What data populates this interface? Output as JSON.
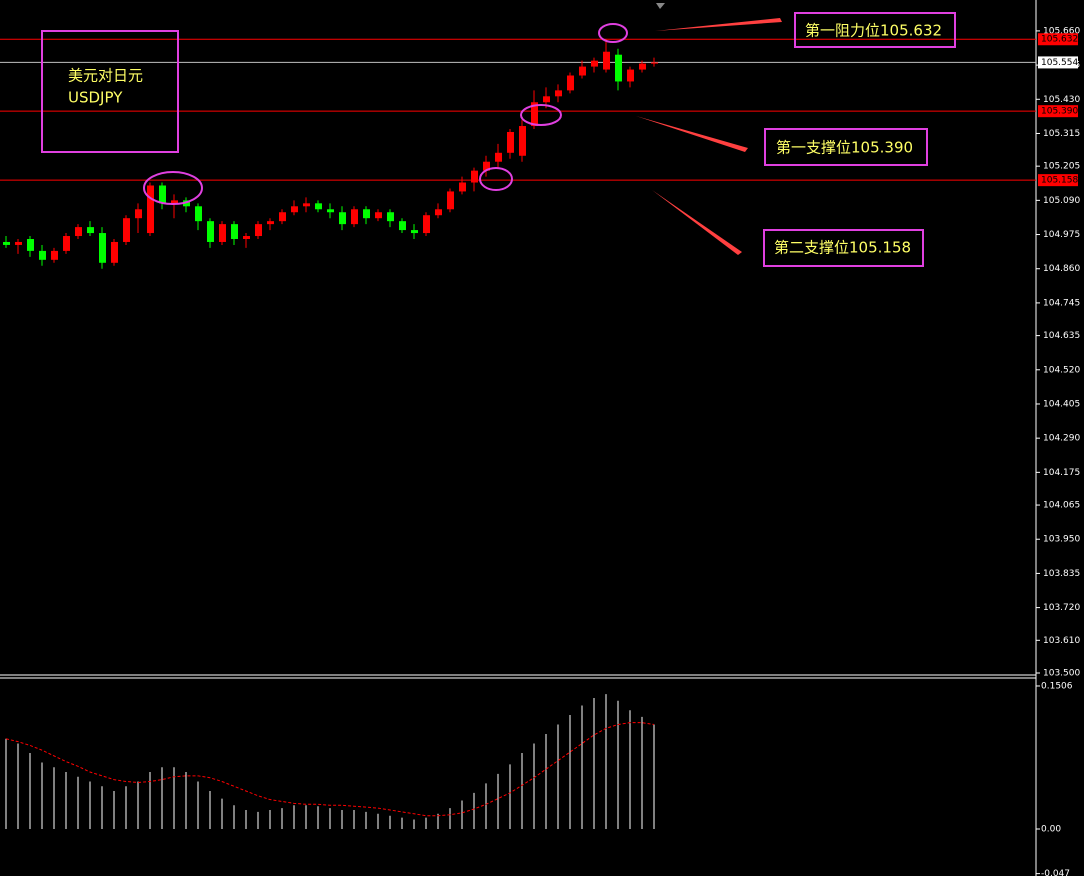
{
  "chart_data": [
    {
      "type": "candlestick",
      "open": [
        104.95,
        104.94,
        104.96,
        104.92,
        104.89,
        104.92,
        104.97,
        105.0,
        104.98,
        104.88,
        104.95,
        105.03,
        104.98,
        105.14,
        105.08,
        105.09,
        105.07,
        105.02,
        104.95,
        105.01,
        104.96,
        104.97,
        105.01,
        105.02,
        105.05,
        105.07,
        105.08,
        105.06,
        105.05,
        105.01,
        105.06,
        105.03,
        105.05,
        105.02,
        104.99,
        104.98,
        105.04,
        105.06,
        105.12,
        105.15,
        105.19,
        105.22,
        105.25,
        105.24,
        105.34,
        105.42,
        105.44,
        105.46,
        105.51,
        105.54,
        105.53,
        105.58,
        105.49,
        105.53,
        105.55
      ],
      "high": [
        104.97,
        104.96,
        104.97,
        104.94,
        104.93,
        104.98,
        105.01,
        105.02,
        105.0,
        104.96,
        105.04,
        105.08,
        105.15,
        105.15,
        105.11,
        105.1,
        105.08,
        105.03,
        105.02,
        105.02,
        104.98,
        105.02,
        105.03,
        105.06,
        105.09,
        105.1,
        105.09,
        105.08,
        105.07,
        105.07,
        105.07,
        105.06,
        105.06,
        105.03,
        105.01,
        105.05,
        105.08,
        105.13,
        105.17,
        105.2,
        105.24,
        105.28,
        105.33,
        105.36,
        105.46,
        105.47,
        105.48,
        105.52,
        105.56,
        105.57,
        105.632,
        105.6,
        105.54,
        105.56,
        105.57
      ],
      "low": [
        104.93,
        104.91,
        104.9,
        104.87,
        104.88,
        104.91,
        104.96,
        104.97,
        104.86,
        104.87,
        104.94,
        104.98,
        104.97,
        105.06,
        105.03,
        105.05,
        104.99,
        104.93,
        104.94,
        104.94,
        104.93,
        104.96,
        104.99,
        105.01,
        105.04,
        105.05,
        105.05,
        105.03,
        104.99,
        105.0,
        105.01,
        105.02,
        105.0,
        104.98,
        104.96,
        104.97,
        105.03,
        105.05,
        105.11,
        105.12,
        105.17,
        105.2,
        105.23,
        105.22,
        105.33,
        105.4,
        105.42,
        105.45,
        105.5,
        105.52,
        105.52,
        105.46,
        105.47,
        105.52,
        105.54
      ],
      "close": [
        104.94,
        104.95,
        104.92,
        104.89,
        104.92,
        104.97,
        105.0,
        104.98,
        104.88,
        104.95,
        105.03,
        105.06,
        105.14,
        105.08,
        105.09,
        105.07,
        105.02,
        104.95,
        105.01,
        104.96,
        104.97,
        105.01,
        105.02,
        105.05,
        105.07,
        105.08,
        105.06,
        105.05,
        105.01,
        105.06,
        105.03,
        105.05,
        105.02,
        104.99,
        104.98,
        105.04,
        105.06,
        105.12,
        105.15,
        105.19,
        105.22,
        105.25,
        105.32,
        105.34,
        105.42,
        105.44,
        105.46,
        105.51,
        105.54,
        105.56,
        105.59,
        105.49,
        105.53,
        105.55,
        105.554
      ],
      "up_color": "#ff0000",
      "down_color": "#00ff00",
      "ylim": [
        103.5,
        105.764
      ],
      "yticks": [
        {
          "value": 105.66,
          "label": "105.660"
        },
        {
          "value": 105.545,
          "label": "105.545"
        },
        {
          "value": 105.43,
          "label": "105.430"
        },
        {
          "value": 105.315,
          "label": "105.315"
        },
        {
          "value": 105.205,
          "label": "105.205"
        },
        {
          "value": 105.09,
          "label": "105.090"
        },
        {
          "value": 104.975,
          "label": "104.975"
        },
        {
          "value": 104.86,
          "label": "104.860"
        },
        {
          "value": 104.745,
          "label": "104.745"
        },
        {
          "value": 104.635,
          "label": "104.635"
        },
        {
          "value": 104.52,
          "label": "104.520"
        },
        {
          "value": 104.405,
          "label": "104.405"
        },
        {
          "value": 104.29,
          "label": "104.290"
        },
        {
          "value": 104.175,
          "label": "104.175"
        },
        {
          "value": 104.065,
          "label": "104.065"
        },
        {
          "value": 103.95,
          "label": "103.950"
        },
        {
          "value": 103.835,
          "label": "103.835"
        },
        {
          "value": 103.72,
          "label": "103.720"
        },
        {
          "value": 103.61,
          "label": "103.610"
        },
        {
          "value": 103.5,
          "label": "103.500"
        }
      ],
      "hlines": [
        {
          "value": 105.632,
          "label": "105.632",
          "color": "#ff0000"
        },
        {
          "value": 105.554,
          "label": "105.554",
          "color": "#c0c0c0"
        },
        {
          "value": 105.39,
          "label": "105.390",
          "color": "#ff0000"
        },
        {
          "value": 105.158,
          "label": "105.158",
          "color": "#ff0000"
        }
      ],
      "annotations": [
        "第一阻力位105.632",
        "第一支撑位105.390",
        "第二支撑位105.158"
      ],
      "symbol": [
        "美元对日元",
        "USDJPY"
      ]
    },
    {
      "type": "macd",
      "histogram": {
        "color": "#ffffff",
        "values": [
          0.095,
          0.09,
          0.08,
          0.07,
          0.065,
          0.06,
          0.055,
          0.05,
          0.045,
          0.04,
          0.045,
          0.05,
          0.06,
          0.065,
          0.065,
          0.06,
          0.05,
          0.04,
          0.032,
          0.025,
          0.02,
          0.018,
          0.02,
          0.022,
          0.025,
          0.025,
          0.024,
          0.022,
          0.02,
          0.02,
          0.018,
          0.016,
          0.014,
          0.012,
          0.01,
          0.012,
          0.016,
          0.022,
          0.03,
          0.038,
          0.048,
          0.058,
          0.068,
          0.08,
          0.09,
          0.1,
          0.11,
          0.12,
          0.13,
          0.138,
          0.142,
          0.135,
          0.125,
          0.118,
          0.11
        ]
      },
      "signal": {
        "color": "#ff0000",
        "values": [
          0.095,
          0.092,
          0.088,
          0.083,
          0.077,
          0.071,
          0.066,
          0.06,
          0.056,
          0.052,
          0.05,
          0.049,
          0.05,
          0.052,
          0.055,
          0.056,
          0.056,
          0.054,
          0.05,
          0.045,
          0.04,
          0.035,
          0.031,
          0.029,
          0.027,
          0.026,
          0.026,
          0.025,
          0.025,
          0.024,
          0.023,
          0.022,
          0.02,
          0.018,
          0.016,
          0.014,
          0.014,
          0.015,
          0.017,
          0.021,
          0.026,
          0.032,
          0.038,
          0.046,
          0.054,
          0.063,
          0.072,
          0.081,
          0.09,
          0.099,
          0.106,
          0.11,
          0.112,
          0.112,
          0.11
        ]
      },
      "ylim": [
        -0.0495,
        0.159
      ],
      "yticks": [
        0.1506,
        {
          "value": 0,
          "label": "0.00"
        },
        -0.047
      ]
    }
  ]
}
